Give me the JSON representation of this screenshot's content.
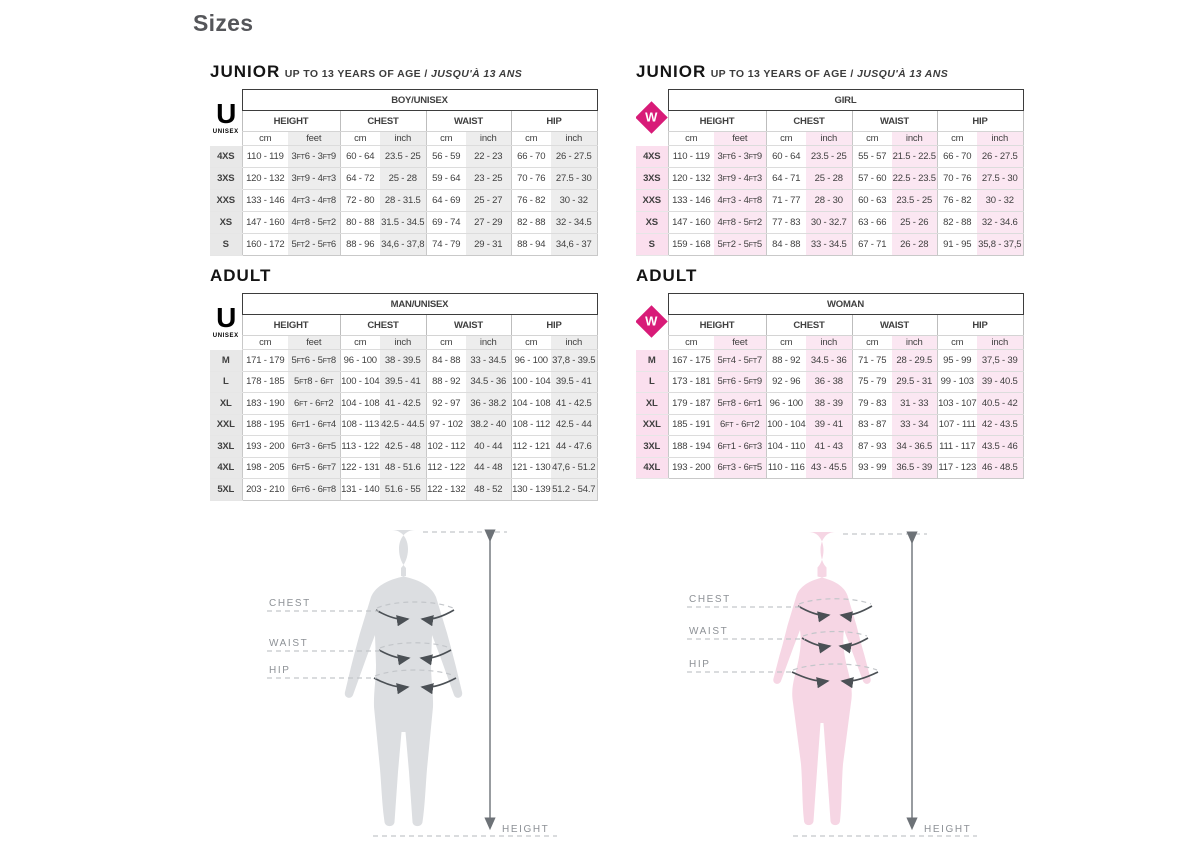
{
  "page_title": "Sizes",
  "colors": {
    "accent_pink": "#d81b78",
    "shade_gray": "#ededed",
    "shade_pink": "#fbe7f2",
    "silhouette_gray": "#dcdee1",
    "silhouette_pink": "#f6d6e4"
  },
  "sections": {
    "junior_boy": {
      "heading_big": "JUNIOR",
      "heading_sub": "UP TO 13 YEARS OF AGE / ",
      "heading_sub_italic": "JUSQU'À 13 ANS",
      "table_title": "BOY/UNISEX",
      "logo": {
        "type": "unisex",
        "letter": "U",
        "label": "UNISEX"
      },
      "groups": [
        "HEIGHT",
        "CHEST",
        "WAIST",
        "HIP"
      ],
      "units": [
        "cm",
        "feet",
        "cm",
        "inch",
        "cm",
        "inch",
        "cm",
        "inch"
      ],
      "rows": [
        {
          "size": "4XS",
          "cells": [
            "110 - 119",
            "3ft6 - 3ft9",
            "60 - 64",
            "23.5 - 25",
            "56 - 59",
            "22 - 23",
            "66 - 70",
            "26 - 27.5"
          ]
        },
        {
          "size": "3XS",
          "cells": [
            "120 - 132",
            "3ft9 - 4ft3",
            "64 - 72",
            "25 - 28",
            "59 - 64",
            "23 - 25",
            "70 - 76",
            "27.5 - 30"
          ]
        },
        {
          "size": "XXS",
          "cells": [
            "133 - 146",
            "4ft3 - 4ft8",
            "72 - 80",
            "28 - 31.5",
            "64 - 69",
            "25 - 27",
            "76 - 82",
            "30 - 32"
          ]
        },
        {
          "size": "XS",
          "cells": [
            "147 - 160",
            "4ft8 - 5ft2",
            "80 - 88",
            "31.5 - 34.5",
            "69 - 74",
            "27 - 29",
            "82 - 88",
            "32 - 34.5"
          ]
        },
        {
          "size": "S",
          "cells": [
            "160 - 172",
            "5ft2 - 5ft6",
            "88 - 96",
            "34,6 - 37,8",
            "74 - 79",
            "29 - 31",
            "88 - 94",
            "34,6 - 37"
          ]
        }
      ]
    },
    "junior_girl": {
      "heading_big": "JUNIOR",
      "heading_sub": "UP TO 13 YEARS OF AGE / ",
      "heading_sub_italic": "JUSQU'À 13 ANS",
      "table_title": "GIRL",
      "logo": {
        "type": "woman",
        "letter": "W",
        "label": ""
      },
      "groups": [
        "HEIGHT",
        "CHEST",
        "WAIST",
        "HIP"
      ],
      "units": [
        "cm",
        "feet",
        "cm",
        "inch",
        "cm",
        "inch",
        "cm",
        "inch"
      ],
      "rows": [
        {
          "size": "4XS",
          "cells": [
            "110 - 119",
            "3ft6 - 3ft9",
            "60 - 64",
            "23.5 - 25",
            "55 - 57",
            "21.5 - 22.5",
            "66 - 70",
            "26 - 27.5"
          ]
        },
        {
          "size": "3XS",
          "cells": [
            "120 - 132",
            "3ft9 - 4ft3",
            "64 - 71",
            "25 - 28",
            "57 - 60",
            "22.5 - 23.5",
            "70 - 76",
            "27.5 - 30"
          ]
        },
        {
          "size": "XXS",
          "cells": [
            "133 - 146",
            "4ft3 - 4ft8",
            "71 - 77",
            "28 - 30",
            "60 - 63",
            "23.5 - 25",
            "76 - 82",
            "30 - 32"
          ]
        },
        {
          "size": "XS",
          "cells": [
            "147 - 160",
            "4ft8 - 5ft2",
            "77 - 83",
            "30 - 32.7",
            "63 - 66",
            "25 - 26",
            "82 - 88",
            "32 - 34.6"
          ]
        },
        {
          "size": "S",
          "cells": [
            "159 - 168",
            "5ft2 - 5ft5",
            "84 - 88",
            "33 - 34.5",
            "67 - 71",
            "26 - 28",
            "91 - 95",
            "35,8 - 37,5"
          ]
        }
      ]
    },
    "adult_man": {
      "heading_big": "ADULT",
      "heading_sub": "",
      "heading_sub_italic": "",
      "table_title": "MAN/UNISEX",
      "logo": {
        "type": "unisex",
        "letter": "U",
        "label": "UNISEX"
      },
      "groups": [
        "HEIGHT",
        "CHEST",
        "WAIST",
        "HIP"
      ],
      "units": [
        "cm",
        "feet",
        "cm",
        "inch",
        "cm",
        "inch",
        "cm",
        "inch"
      ],
      "rows": [
        {
          "size": "M",
          "cells": [
            "171 - 179",
            "5ft6 - 5ft8",
            "96 - 100",
            "38 - 39.5",
            "84 - 88",
            "33 - 34.5",
            "96 - 100",
            "37,8 - 39.5"
          ]
        },
        {
          "size": "L",
          "cells": [
            "178 - 185",
            "5ft8 - 6ft",
            "100 - 104",
            "39.5 - 41",
            "88 - 92",
            "34.5 - 36",
            "100 - 104",
            "39.5 - 41"
          ]
        },
        {
          "size": "XL",
          "cells": [
            "183 - 190",
            "6ft - 6ft2",
            "104 - 108",
            "41 - 42.5",
            "92 - 97",
            "36 - 38.2",
            "104 - 108",
            "41 - 42.5"
          ]
        },
        {
          "size": "XXL",
          "cells": [
            "188 - 195",
            "6ft1 - 6ft4",
            "108 - 113",
            "42.5 - 44.5",
            "97 - 102",
            "38.2 - 40",
            "108 - 112",
            "42.5 - 44"
          ]
        },
        {
          "size": "3XL",
          "cells": [
            "193 - 200",
            "6ft3 - 6ft5",
            "113 - 122",
            "42.5 - 48",
            "102 - 112",
            "40 - 44",
            "112 - 121",
            "44 - 47.6"
          ]
        },
        {
          "size": "4XL",
          "cells": [
            "198 - 205",
            "6ft5 - 6ft7",
            "122 - 131",
            "48 - 51.6",
            "112 - 122",
            "44 - 48",
            "121 - 130",
            "47,6 - 51.2"
          ]
        },
        {
          "size": "5XL",
          "cells": [
            "203 - 210",
            "6ft6 - 6ft8",
            "131 - 140",
            "51.6 - 55",
            "122 - 132",
            "48 - 52",
            "130 - 139",
            "51.2 - 54.7"
          ]
        }
      ]
    },
    "adult_woman": {
      "heading_big": "ADULT",
      "heading_sub": "",
      "heading_sub_italic": "",
      "table_title": "WOMAN",
      "logo": {
        "type": "woman",
        "letter": "W",
        "label": ""
      },
      "groups": [
        "HEIGHT",
        "CHEST",
        "WAIST",
        "HIP"
      ],
      "units": [
        "cm",
        "feet",
        "cm",
        "inch",
        "cm",
        "inch",
        "cm",
        "inch"
      ],
      "rows": [
        {
          "size": "M",
          "cells": [
            "167 - 175",
            "5ft4 - 5ft7",
            "88 - 92",
            "34.5 - 36",
            "71 - 75",
            "28 - 29.5",
            "95 - 99",
            "37,5 - 39"
          ]
        },
        {
          "size": "L",
          "cells": [
            "173 - 181",
            "5ft6 - 5ft9",
            "92 - 96",
            "36 - 38",
            "75 - 79",
            "29.5 - 31",
            "99 - 103",
            "39 - 40.5"
          ]
        },
        {
          "size": "XL",
          "cells": [
            "179 - 187",
            "5ft8 - 6ft1",
            "96 - 100",
            "38 - 39",
            "79 - 83",
            "31 - 33",
            "103 - 107",
            "40.5 - 42"
          ]
        },
        {
          "size": "XXL",
          "cells": [
            "185 - 191",
            "6ft - 6ft2",
            "100 - 104",
            "39 - 41",
            "83 - 87",
            "33 - 34",
            "107 - 111",
            "42 - 43.5"
          ]
        },
        {
          "size": "3XL",
          "cells": [
            "188 - 194",
            "6ft1 - 6ft3",
            "104 - 110",
            "41 - 43",
            "87 - 93",
            "34 - 36.5",
            "111 - 117",
            "43.5 - 46"
          ]
        },
        {
          "size": "4XL",
          "cells": [
            "193 - 200",
            "6ft3 - 6ft5",
            "110 - 116",
            "43 - 45.5",
            "93 - 99",
            "36.5 - 39",
            "117 - 123",
            "46 - 48.5"
          ]
        }
      ]
    }
  },
  "figures": {
    "male": {
      "labels": {
        "chest": "CHEST",
        "waist": "WAIST",
        "hip": "HIP",
        "height": "HEIGHT"
      }
    },
    "female": {
      "labels": {
        "chest": "CHEST",
        "waist": "WAIST",
        "hip": "HIP",
        "height": "HEIGHT"
      }
    }
  }
}
